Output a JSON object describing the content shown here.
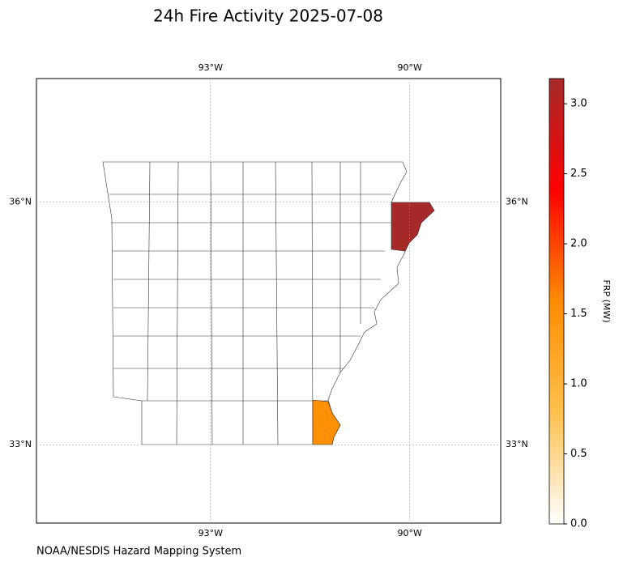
{
  "chart_data": {
    "type": "choropleth",
    "title": "24h Fire Activity 2025-07-08",
    "source": "NOAA/NESDIS Hazard Mapping System",
    "xlim": [
      -95.62,
      -88.63
    ],
    "ylim": [
      32.03,
      37.53
    ],
    "xticks": [
      {
        "value": -93,
        "label": "93°W"
      },
      {
        "value": -90,
        "label": "90°W"
      }
    ],
    "yticks": [
      {
        "value": 36,
        "label": "36°N"
      },
      {
        "value": 33,
        "label": "33°N"
      }
    ],
    "grid": true,
    "regions": [
      {
        "frp": 3.17
      },
      {
        "frp": 1.55
      }
    ],
    "colorbar": {
      "label": "FRP (MW)",
      "lim": [
        0,
        3.18
      ],
      "ticks": [
        {
          "value": 0,
          "label": "0.0"
        },
        {
          "value": 0.5,
          "label": "0.5"
        },
        {
          "value": 1,
          "label": "1.0"
        },
        {
          "value": 1.5,
          "label": "1.5"
        },
        {
          "value": 2,
          "label": "2.0"
        },
        {
          "value": 2.5,
          "label": "2.5"
        },
        {
          "value": 3,
          "label": "3.0"
        }
      ],
      "colormap": [
        "#ffffff",
        "#ffc04d",
        "#ff8c00",
        "#ff0000",
        "#a52a2a"
      ]
    }
  }
}
